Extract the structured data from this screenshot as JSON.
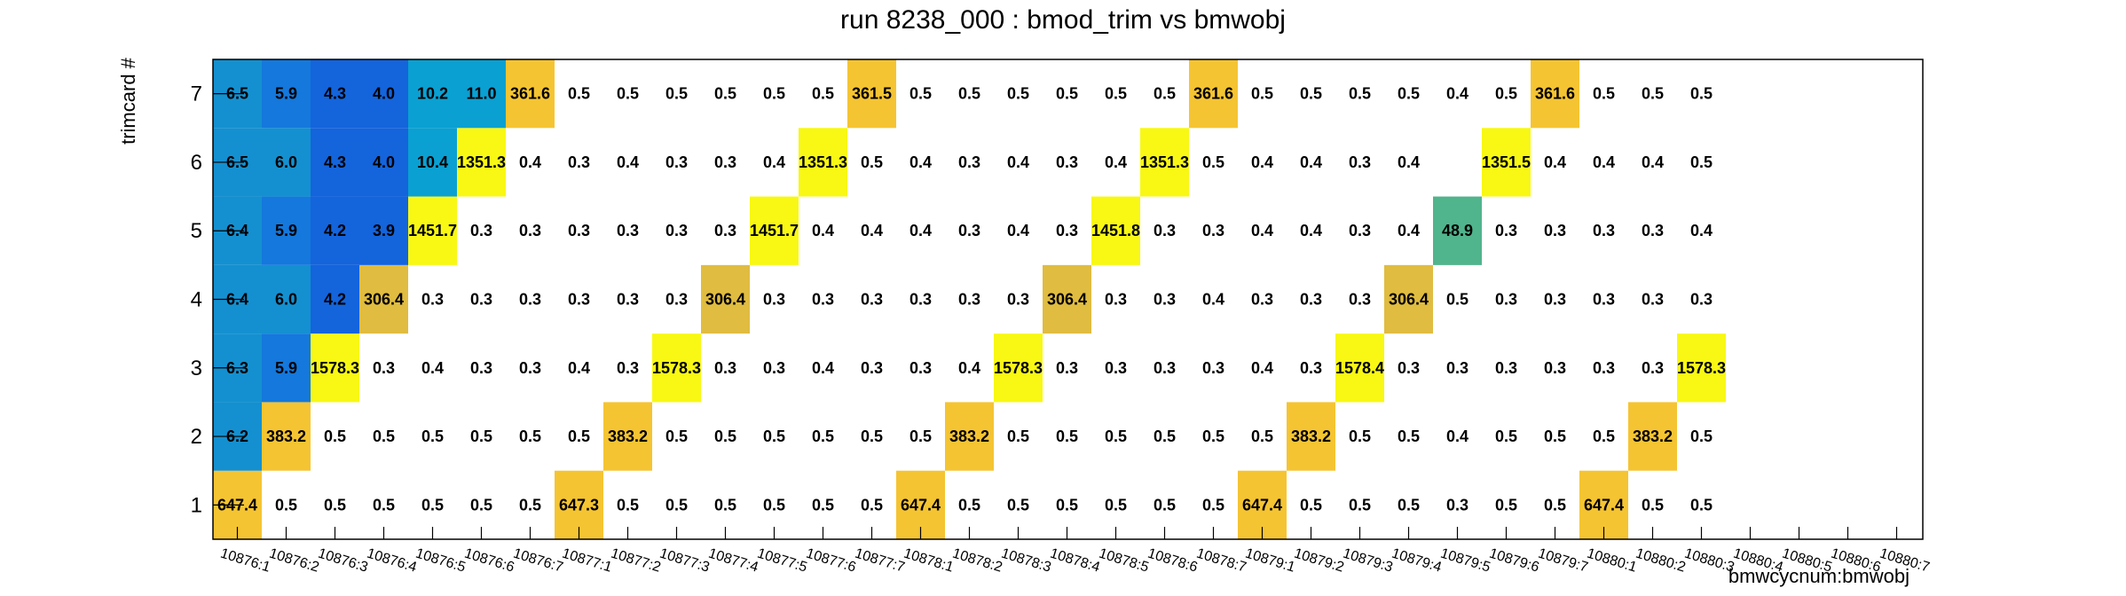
{
  "chart_data": {
    "type": "heatmap",
    "title": "run 8238_000 : bmod_trim vs bmwobj",
    "xlabel": "bmwcycnum:bmwobj",
    "ylabel": "trimcard #",
    "x_categories": [
      "10876:1",
      "10876:2",
      "10876:3",
      "10876:4",
      "10876:5",
      "10876:6",
      "10876:7",
      "10877:1",
      "10877:2",
      "10877:3",
      "10877:4",
      "10877:5",
      "10877:6",
      "10877:7",
      "10878:1",
      "10878:2",
      "10878:3",
      "10878:4",
      "10878:5",
      "10878:6",
      "10878:7",
      "10879:1",
      "10879:2",
      "10879:3",
      "10879:4",
      "10879:5",
      "10879:6",
      "10879:7",
      "10880:1",
      "10880:2",
      "10880:3",
      "10880:4",
      "10880:5",
      "10880:6",
      "10880:7"
    ],
    "y_categories": [
      "1",
      "2",
      "3",
      "4",
      "5",
      "6",
      "7"
    ],
    "values": [
      [
        "647.4",
        "0.5",
        "0.5",
        "0.5",
        "0.5",
        "0.5",
        "0.5",
        "647.3",
        "0.5",
        "0.5",
        "0.5",
        "0.5",
        "0.5",
        "0.5",
        "647.4",
        "0.5",
        "0.5",
        "0.5",
        "0.5",
        "0.5",
        "0.5",
        "647.4",
        "0.5",
        "0.5",
        "0.5",
        "0.3",
        "0.5",
        "0.5",
        "647.4",
        "0.5",
        "0.5",
        "",
        "",
        "",
        ""
      ],
      [
        "6.2",
        "383.2",
        "0.5",
        "0.5",
        "0.5",
        "0.5",
        "0.5",
        "0.5",
        "383.2",
        "0.5",
        "0.5",
        "0.5",
        "0.5",
        "0.5",
        "0.5",
        "383.2",
        "0.5",
        "0.5",
        "0.5",
        "0.5",
        "0.5",
        "0.5",
        "383.2",
        "0.5",
        "0.5",
        "0.4",
        "0.5",
        "0.5",
        "0.5",
        "383.2",
        "0.5",
        "",
        "",
        "",
        ""
      ],
      [
        "6.3",
        "5.9",
        "1578.3",
        "0.3",
        "0.4",
        "0.3",
        "0.3",
        "0.4",
        "0.3",
        "1578.3",
        "0.3",
        "0.3",
        "0.4",
        "0.3",
        "0.3",
        "0.4",
        "1578.3",
        "0.3",
        "0.3",
        "0.3",
        "0.3",
        "0.4",
        "0.3",
        "1578.4",
        "0.3",
        "0.3",
        "0.3",
        "0.3",
        "0.3",
        "0.3",
        "1578.3",
        "",
        "",
        "",
        ""
      ],
      [
        "6.4",
        "6.0",
        "4.2",
        "306.4",
        "0.3",
        "0.3",
        "0.3",
        "0.3",
        "0.3",
        "0.3",
        "306.4",
        "0.3",
        "0.3",
        "0.3",
        "0.3",
        "0.3",
        "0.3",
        "306.4",
        "0.3",
        "0.3",
        "0.4",
        "0.3",
        "0.3",
        "0.3",
        "306.4",
        "0.5",
        "0.3",
        "0.3",
        "0.3",
        "0.3",
        "0.3",
        "",
        "",
        "",
        ""
      ],
      [
        "6.4",
        "5.9",
        "4.2",
        "3.9",
        "1451.7",
        "0.3",
        "0.3",
        "0.3",
        "0.3",
        "0.3",
        "0.3",
        "1451.7",
        "0.4",
        "0.4",
        "0.4",
        "0.3",
        "0.4",
        "0.3",
        "1451.8",
        "0.3",
        "0.3",
        "0.4",
        "0.4",
        "0.3",
        "0.4",
        "48.9",
        "0.3",
        "0.3",
        "0.3",
        "0.3",
        "0.4",
        "",
        "",
        "",
        ""
      ],
      [
        "6.5",
        "6.0",
        "4.3",
        "4.0",
        "10.4",
        "1351.3",
        "0.4",
        "0.3",
        "0.4",
        "0.3",
        "0.3",
        "0.4",
        "1351.3",
        "0.5",
        "0.4",
        "0.3",
        "0.4",
        "0.3",
        "0.4",
        "1351.3",
        "0.5",
        "0.4",
        "0.4",
        "0.3",
        "0.4",
        "",
        "1351.5",
        "0.4",
        "0.4",
        "0.4",
        "0.5",
        "",
        "",
        "",
        ""
      ],
      [
        "6.5",
        "5.9",
        "4.3",
        "4.0",
        "10.2",
        "11.0",
        "361.6",
        "0.5",
        "0.5",
        "0.5",
        "0.5",
        "0.5",
        "0.5",
        "361.5",
        "0.5",
        "0.5",
        "0.5",
        "0.5",
        "0.5",
        "0.5",
        "361.6",
        "0.5",
        "0.5",
        "0.5",
        "0.5",
        "0.4",
        "0.5",
        "361.6",
        "0.5",
        "0.5",
        "0.5",
        "",
        "",
        "",
        ""
      ]
    ],
    "colors": {
      "dark_blue": "#1464dc",
      "blue": "#1478dc",
      "mid_blue": "#1490d0",
      "light_blue": "#0aa0d2",
      "green": "#50b48c",
      "dark_gold": "#e0bc40",
      "gold": "#f5c432",
      "yellow": "#f8f814",
      "frame": "#000000"
    }
  }
}
